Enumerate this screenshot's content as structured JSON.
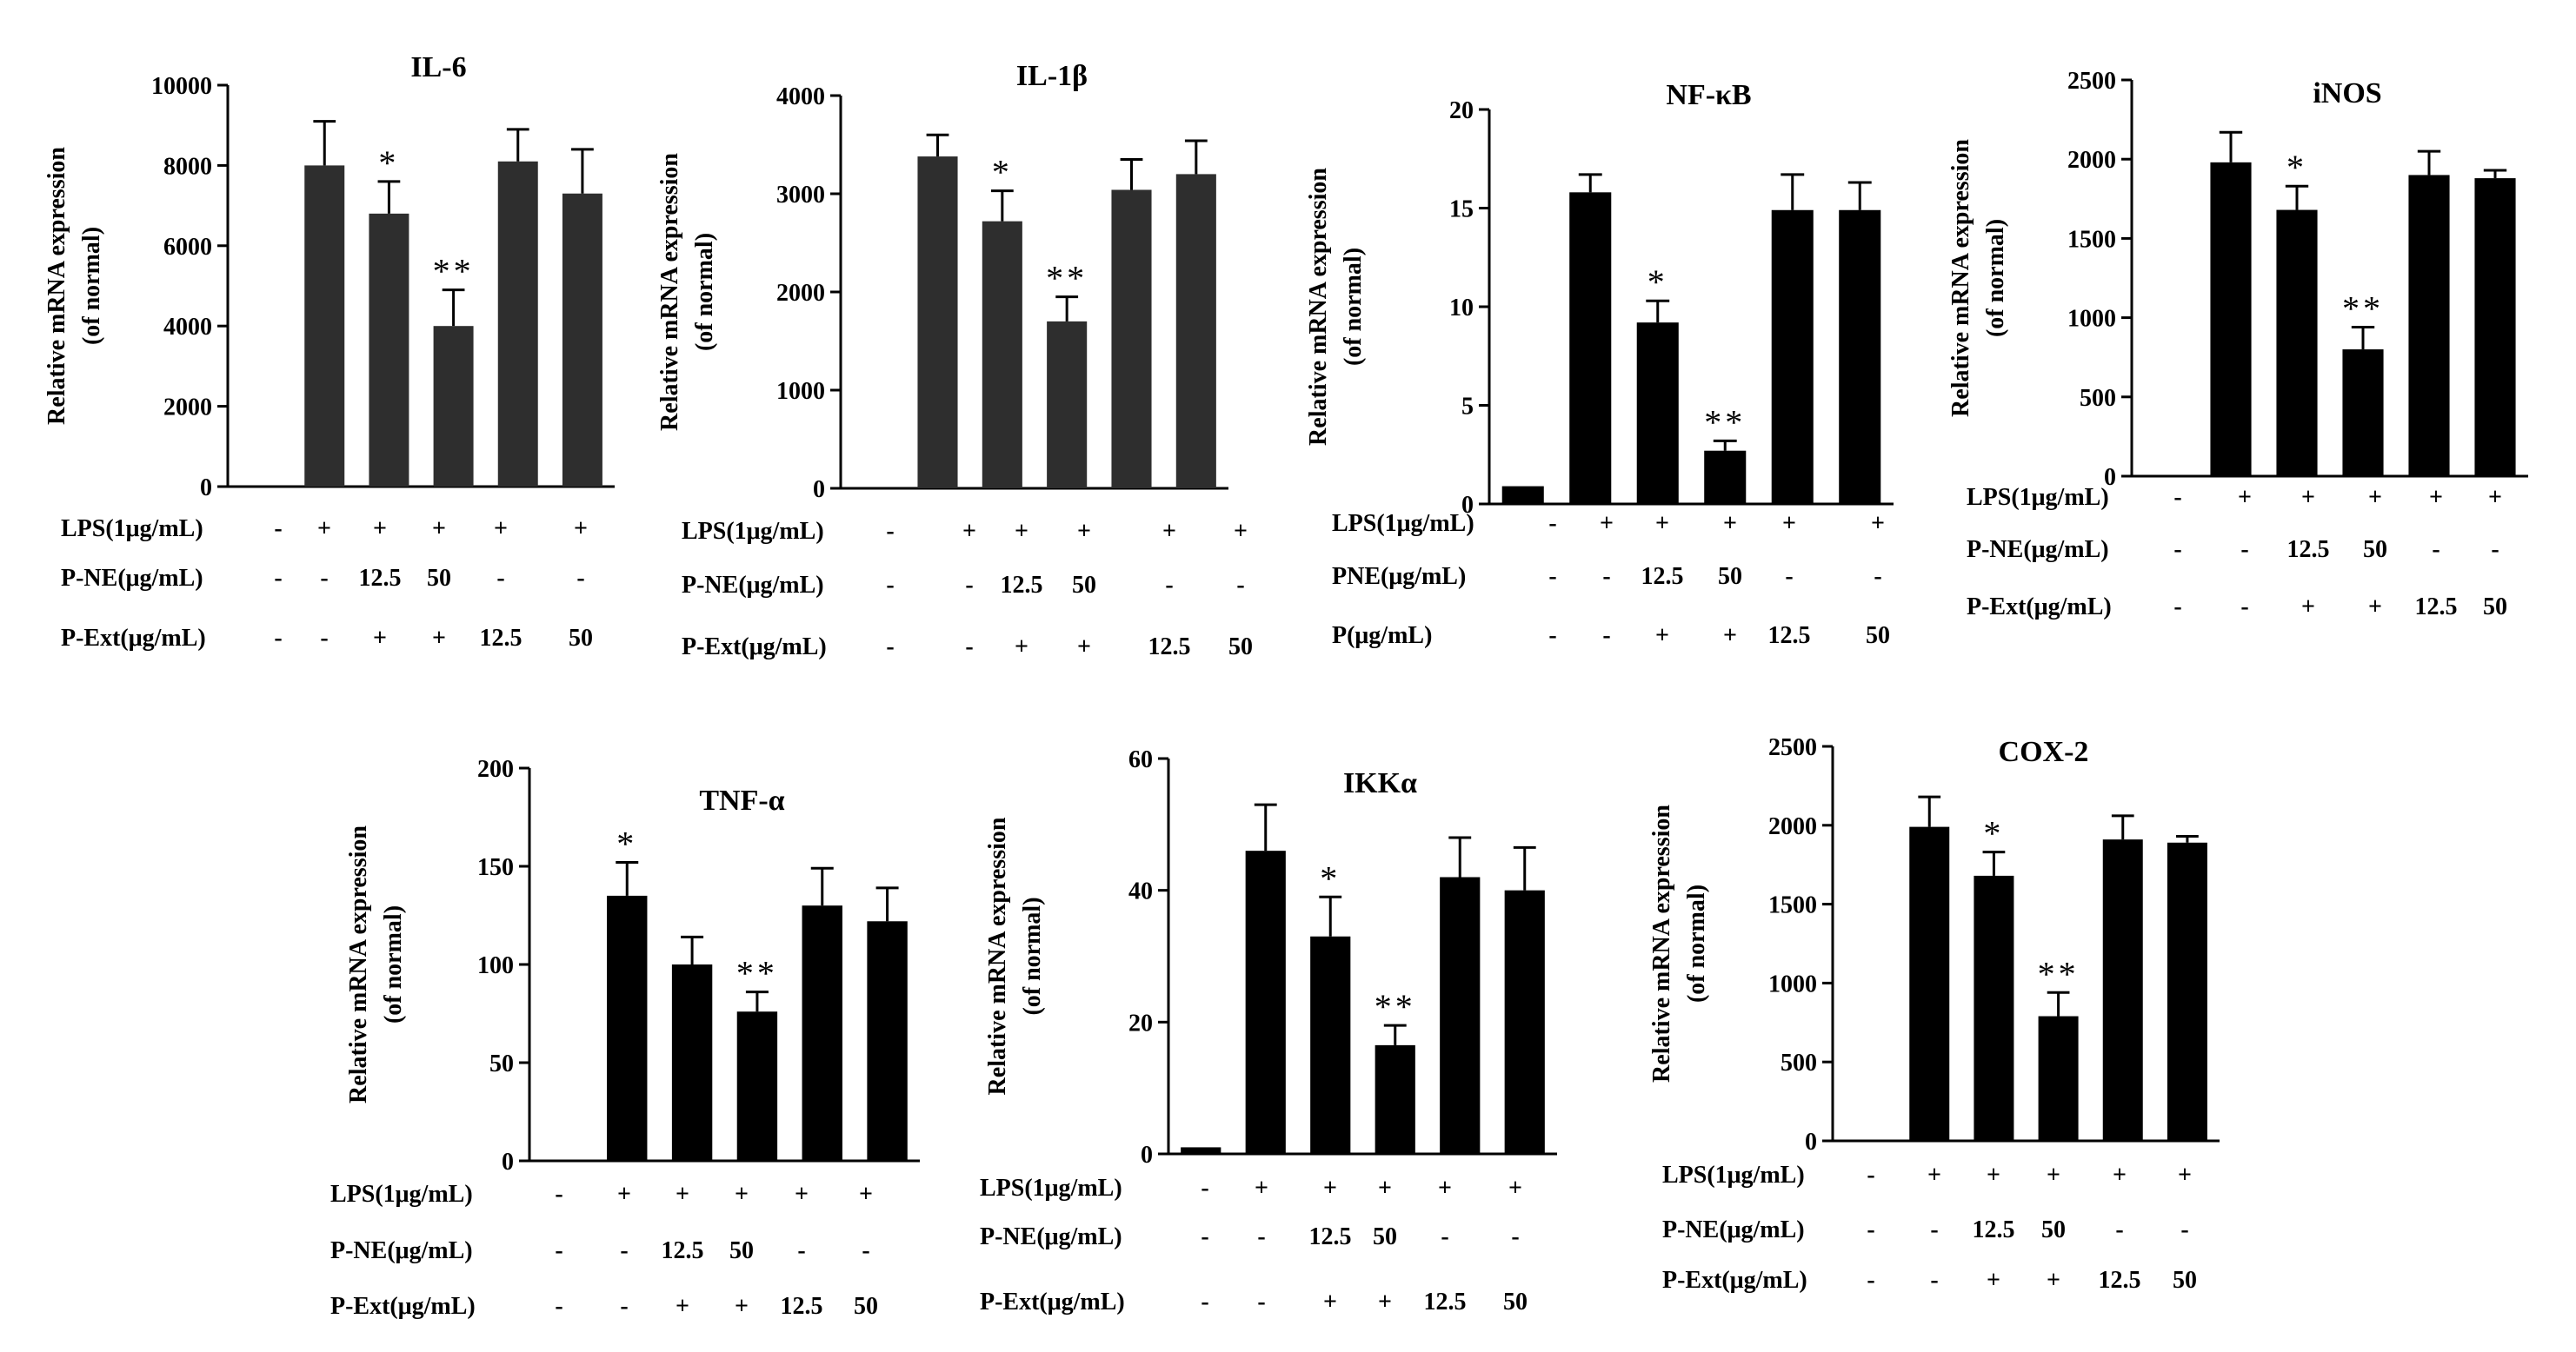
{
  "figure": {
    "background": "#ffffff",
    "bar_color": "#000000",
    "axis_color": "#000000"
  },
  "chart_data": [
    {
      "type": "bar",
      "title": "IL-6",
      "ylabel_lines": [
        "Relative mRNA expression",
        "(of normal)"
      ],
      "ylim": [
        0,
        10000
      ],
      "yticks": [
        0,
        2000,
        4000,
        6000,
        8000,
        10000
      ],
      "yticks_labels": [
        "0",
        "2000",
        "4000",
        "6000",
        "8000",
        "10000"
      ],
      "values": [
        0,
        8000,
        6800,
        4000,
        8100,
        7300
      ],
      "errors": [
        0,
        1100,
        800,
        900,
        800,
        1100
      ],
      "significance": [
        "",
        "",
        "*",
        "**",
        "",
        ""
      ],
      "bar_color": "#2e2e2e",
      "conditions": [
        {
          "label": "LPS(1μg/mL)",
          "values": [
            "-",
            "+",
            "+",
            "+",
            "+",
            "+"
          ]
        },
        {
          "label": "P-NE(μg/mL)",
          "values": [
            "-",
            "-",
            "12.5",
            "50",
            "-",
            "-"
          ]
        },
        {
          "label": "P-Ext(μg/mL)",
          "values": [
            "-",
            "-",
            "+",
            "+",
            "12.5",
            "50"
          ]
        }
      ]
    },
    {
      "type": "bar",
      "title": "IL-1β",
      "ylabel_lines": [
        "Relative mRNA expression",
        "(of normal)"
      ],
      "ylim": [
        0,
        4000
      ],
      "yticks": [
        0,
        1000,
        2000,
        3000,
        4000
      ],
      "yticks_labels": [
        "0",
        "1000",
        "2000",
        "3000",
        "4000"
      ],
      "values": [
        0,
        3380,
        2720,
        1700,
        3040,
        3200
      ],
      "errors": [
        0,
        220,
        310,
        250,
        310,
        340
      ],
      "significance": [
        "",
        "",
        "*",
        "**",
        "",
        ""
      ],
      "bar_color": "#2e2e2e",
      "conditions": [
        {
          "label": "LPS(1μg/mL)",
          "values": [
            "-",
            "+",
            "+",
            "+",
            "+",
            "+"
          ]
        },
        {
          "label": "P-NE(μg/mL)",
          "values": [
            "-",
            "-",
            "12.5",
            "50",
            "-",
            "-"
          ]
        },
        {
          "label": "P-Ext(μg/mL)",
          "values": [
            "-",
            "-",
            "+",
            "+",
            "12.5",
            "50"
          ]
        }
      ]
    },
    {
      "type": "bar",
      "title": "NF-κB",
      "ylabel_lines": [
        "Relative mRNA expression",
        "(of normal)"
      ],
      "ylim": [
        0,
        20
      ],
      "yticks": [
        0,
        5,
        10,
        15,
        20
      ],
      "yticks_labels": [
        "0",
        "5",
        "10",
        "15",
        "20"
      ],
      "values": [
        0.9,
        15.8,
        9.2,
        2.7,
        14.9,
        14.9
      ],
      "errors": [
        0,
        0.9,
        1.1,
        0.5,
        1.8,
        1.4
      ],
      "significance": [
        "",
        "",
        "*",
        "**",
        "",
        ""
      ],
      "bar_color": "#000000",
      "conditions": [
        {
          "label": "LPS(1μg/mL)",
          "values": [
            "-",
            "+",
            "+",
            "+",
            "+",
            "+"
          ]
        },
        {
          "label": "PNE(μg/mL)",
          "values": [
            "-",
            "-",
            "12.5",
            "50",
            "-",
            "-"
          ]
        },
        {
          "label": "P(μg/mL)",
          "values": [
            "-",
            "-",
            "+",
            "+",
            "12.5",
            "50"
          ]
        }
      ]
    },
    {
      "type": "bar",
      "title": "iNOS",
      "ylabel_lines": [
        "Relative mRNA expression",
        "(of normal)"
      ],
      "ylim": [
        0,
        2500
      ],
      "yticks": [
        0,
        500,
        1000,
        1500,
        2000,
        2500
      ],
      "yticks_labels": [
        "0",
        "500",
        "1000",
        "1500",
        "2000",
        "2500"
      ],
      "values": [
        0,
        1980,
        1680,
        800,
        1900,
        1880
      ],
      "errors": [
        0,
        190,
        150,
        140,
        150,
        50
      ],
      "significance": [
        "",
        "",
        "*",
        "**",
        "",
        ""
      ],
      "bar_color": "#000000",
      "conditions": [
        {
          "label": "LPS(1μg/mL)",
          "values": [
            "-",
            "+",
            "+",
            "+",
            "+",
            "+"
          ]
        },
        {
          "label": "P-NE(μg/mL)",
          "values": [
            "-",
            "-",
            "12.5",
            "50",
            "-",
            "-"
          ]
        },
        {
          "label": "P-Ext(μg/mL)",
          "values": [
            "-",
            "-",
            "+",
            "+",
            "12.5",
            "50"
          ]
        }
      ]
    },
    {
      "type": "bar",
      "title": "TNF-α",
      "ylabel_lines": [
        "Relative mRNA expression",
        "(of normal)"
      ],
      "ylim": [
        0,
        200
      ],
      "yticks": [
        0,
        50,
        100,
        150,
        200
      ],
      "yticks_labels": [
        "0",
        "50",
        "100",
        "150",
        "200"
      ],
      "values": [
        0,
        135,
        100,
        76,
        130,
        122
      ],
      "errors": [
        0,
        17,
        14,
        10,
        19,
        17
      ],
      "significance": [
        "",
        "*",
        "",
        "**",
        "",
        ""
      ],
      "bar_color": "#000000",
      "conditions": [
        {
          "label": "LPS(1μg/mL)",
          "values": [
            "-",
            "+",
            "+",
            "+",
            "+",
            "+"
          ]
        },
        {
          "label": "P-NE(μg/mL)",
          "values": [
            "-",
            "-",
            "12.5",
            "50",
            "-",
            "-"
          ]
        },
        {
          "label": "P-Ext(μg/mL)",
          "values": [
            "-",
            "-",
            "+",
            "+",
            "12.5",
            "50"
          ]
        }
      ]
    },
    {
      "type": "bar",
      "title": "IKKα",
      "ylabel_lines": [
        "Relative mRNA expression",
        "(of normal)"
      ],
      "ylim": [
        0,
        60
      ],
      "yticks": [
        0,
        20,
        40,
        60
      ],
      "yticks_labels": [
        "0",
        "20",
        "40",
        "60"
      ],
      "values": [
        1,
        46,
        33,
        16.5,
        42,
        40
      ],
      "errors": [
        0,
        7,
        6,
        3,
        6,
        6.5
      ],
      "significance": [
        "",
        "",
        "*",
        "**",
        "",
        ""
      ],
      "bar_color": "#000000",
      "conditions": [
        {
          "label": "LPS(1μg/mL)",
          "values": [
            "-",
            "+",
            "+",
            "+",
            "+",
            "+"
          ]
        },
        {
          "label": "P-NE(μg/mL)",
          "values": [
            "-",
            "-",
            "12.5",
            "50",
            "-",
            "-"
          ]
        },
        {
          "label": "P-Ext(μg/mL)",
          "values": [
            "-",
            "-",
            "+",
            "+",
            "12.5",
            "50"
          ]
        }
      ]
    },
    {
      "type": "bar",
      "title": "COX-2",
      "ylabel_lines": [
        "Relative mRNA expression",
        "(of normal)"
      ],
      "ylim": [
        0,
        2500
      ],
      "yticks": [
        0,
        500,
        1000,
        1500,
        2000,
        2500
      ],
      "yticks_labels": [
        "0",
        "500",
        "1000",
        "1500",
        "2000",
        "2500"
      ],
      "values": [
        0,
        1990,
        1680,
        790,
        1910,
        1890
      ],
      "errors": [
        0,
        190,
        150,
        150,
        150,
        40
      ],
      "significance": [
        "",
        "",
        "*",
        "**",
        "",
        ""
      ],
      "bar_color": "#000000",
      "conditions": [
        {
          "label": "LPS(1μg/mL)",
          "values": [
            "-",
            "+",
            "+",
            "+",
            "+",
            "+"
          ]
        },
        {
          "label": "P-NE(μg/mL)",
          "values": [
            "-",
            "-",
            "12.5",
            "50",
            "-",
            "-"
          ]
        },
        {
          "label": "P-Ext(μg/mL)",
          "values": [
            "-",
            "-",
            "+",
            "+",
            "12.5",
            "50"
          ]
        }
      ]
    }
  ]
}
